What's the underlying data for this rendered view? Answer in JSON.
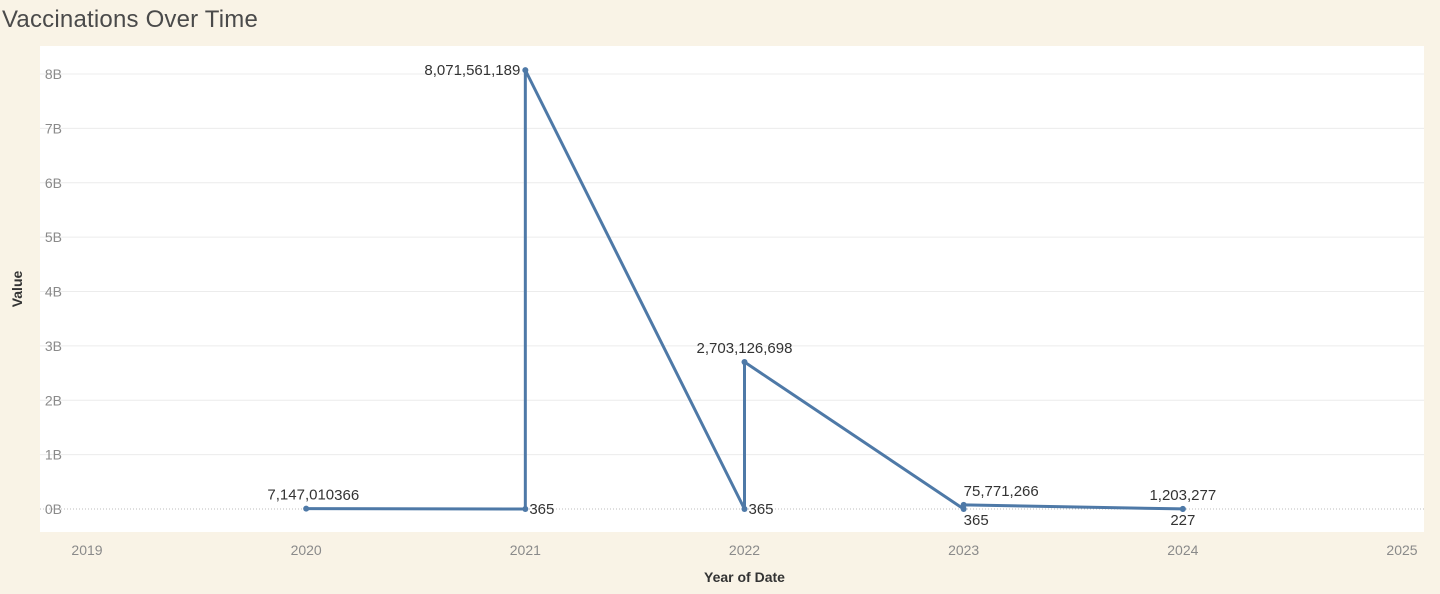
{
  "title": "Vaccinations Over Time",
  "chart_data": {
    "type": "line",
    "xlabel": "Year of Date",
    "ylabel": "Value",
    "x_ticks": [
      "2019",
      "2020",
      "2021",
      "2022",
      "2023",
      "2024",
      "2025"
    ],
    "y_ticks": [
      "0B",
      "1B",
      "2B",
      "3B",
      "4B",
      "5B",
      "6B",
      "7B",
      "8B"
    ],
    "xlim": [
      2019,
      2025
    ],
    "ylim": [
      0,
      8000000000
    ],
    "grid": true,
    "line_color": "#4e79a7",
    "points": [
      {
        "x": 2020,
        "y": 7147010,
        "label": "7,147,010",
        "label_pos": "top-left"
      },
      {
        "x": 2021,
        "y": 365,
        "label": "365",
        "label_pos": "right"
      },
      {
        "x": 2021,
        "y": 8071561189,
        "label": "8,071,561,189",
        "label_pos": "left"
      },
      {
        "x": 2022,
        "y": 365,
        "label": "365",
        "label_pos": "right"
      },
      {
        "x": 2022,
        "y": 2703126698,
        "label": "2,703,126,698",
        "label_pos": "top"
      },
      {
        "x": 2023,
        "y": 365,
        "label": "365",
        "label_pos": "below-right"
      },
      {
        "x": 2023,
        "y": 75771266,
        "label": "75,771,266",
        "label_pos": "top-right"
      },
      {
        "x": 2024,
        "y": 1203277,
        "label": "1,203,277",
        "label_pos": "top"
      },
      {
        "x": 2024,
        "y": 227,
        "label": "227",
        "label_pos": "below"
      }
    ],
    "extra_labels": [
      {
        "x": 2020,
        "y": 365,
        "label": "366"
      }
    ]
  }
}
